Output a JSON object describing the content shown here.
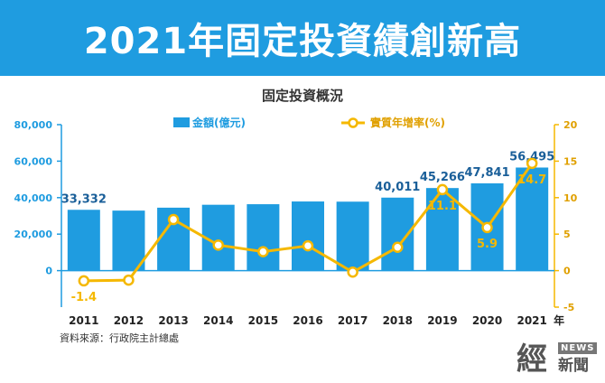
{
  "header": {
    "title": "2021年固定投資績創新高"
  },
  "chart_data": {
    "type": "bar",
    "title": "固定投資概況",
    "categories": [
      "2011",
      "2012",
      "2013",
      "2014",
      "2015",
      "2016",
      "2017",
      "2018",
      "2019",
      "2020",
      "2021"
    ],
    "x_unit": "年",
    "series": [
      {
        "name": "金額(億元)",
        "type": "bar",
        "axis": "left",
        "color": "#1f9ce0",
        "values": [
          33332,
          32900,
          34500,
          36100,
          36400,
          37900,
          37800,
          40011,
          45266,
          47841,
          56495
        ]
      },
      {
        "name": "實質年增率(%)",
        "type": "line",
        "axis": "right",
        "color": "#f5b800",
        "values": [
          -1.4,
          -1.3,
          7.0,
          3.5,
          2.6,
          3.4,
          -0.2,
          3.2,
          11.1,
          5.9,
          14.7
        ]
      }
    ],
    "bar_labels": [
      "33,332",
      "",
      "",
      "",
      "",
      "",
      "",
      "40,011",
      "45,266",
      "47,841",
      "56,495"
    ],
    "line_labels": [
      "-1.4",
      "",
      "",
      "",
      "",
      "",
      "",
      "",
      "11.1",
      "5.9",
      "14.7"
    ],
    "y_left": {
      "min": -20000,
      "max": 80000,
      "ticks": [
        "80,000",
        "60,000",
        "40,000",
        "20,000",
        "0"
      ]
    },
    "y_right": {
      "min": -5,
      "max": 20,
      "ticks": [
        "20",
        "15",
        "10",
        "5",
        "0",
        "-5"
      ]
    },
    "grid": false,
    "legend_position": "top"
  },
  "source_note": "資料來源：行政院主計總處",
  "brand": {
    "big": "經",
    "en": "NEWS",
    "small": "新聞"
  }
}
